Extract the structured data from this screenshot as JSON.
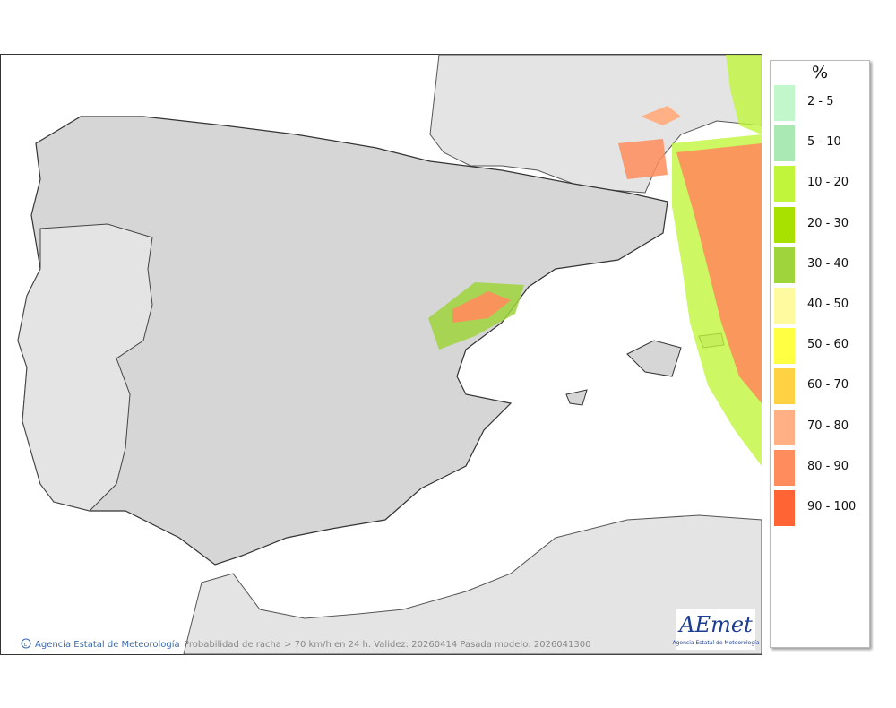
{
  "legend": {
    "title": "%",
    "items": [
      {
        "label": "2 - 5",
        "color": "#c2f7cc"
      },
      {
        "label": "5 - 10",
        "color": "#aae8b4"
      },
      {
        "label": "10 - 20",
        "color": "#c0f53c"
      },
      {
        "label": "20 - 30",
        "color": "#a8e000"
      },
      {
        "label": "30 - 40",
        "color": "#a0d43c"
      },
      {
        "label": "40 - 50",
        "color": "#fff9a0"
      },
      {
        "label": "50 - 60",
        "color": "#ffff44"
      },
      {
        "label": "60 - 70",
        "color": "#ffd244"
      },
      {
        "label": "70 - 80",
        "color": "#ffb084"
      },
      {
        "label": "80 - 90",
        "color": "#ff8c5c"
      },
      {
        "label": "90 - 100",
        "color": "#ff6434"
      }
    ]
  },
  "footer": {
    "copyright": "Agencia Estatal de Meteorología",
    "caption": "Probabilidad de racha > 70 km/h en 24 h. Validez: 20260414 Pasada modelo: 2026041300"
  },
  "logo": {
    "name": "AEmet",
    "subtitle": "Agencia Estatal de Meteorología"
  }
}
